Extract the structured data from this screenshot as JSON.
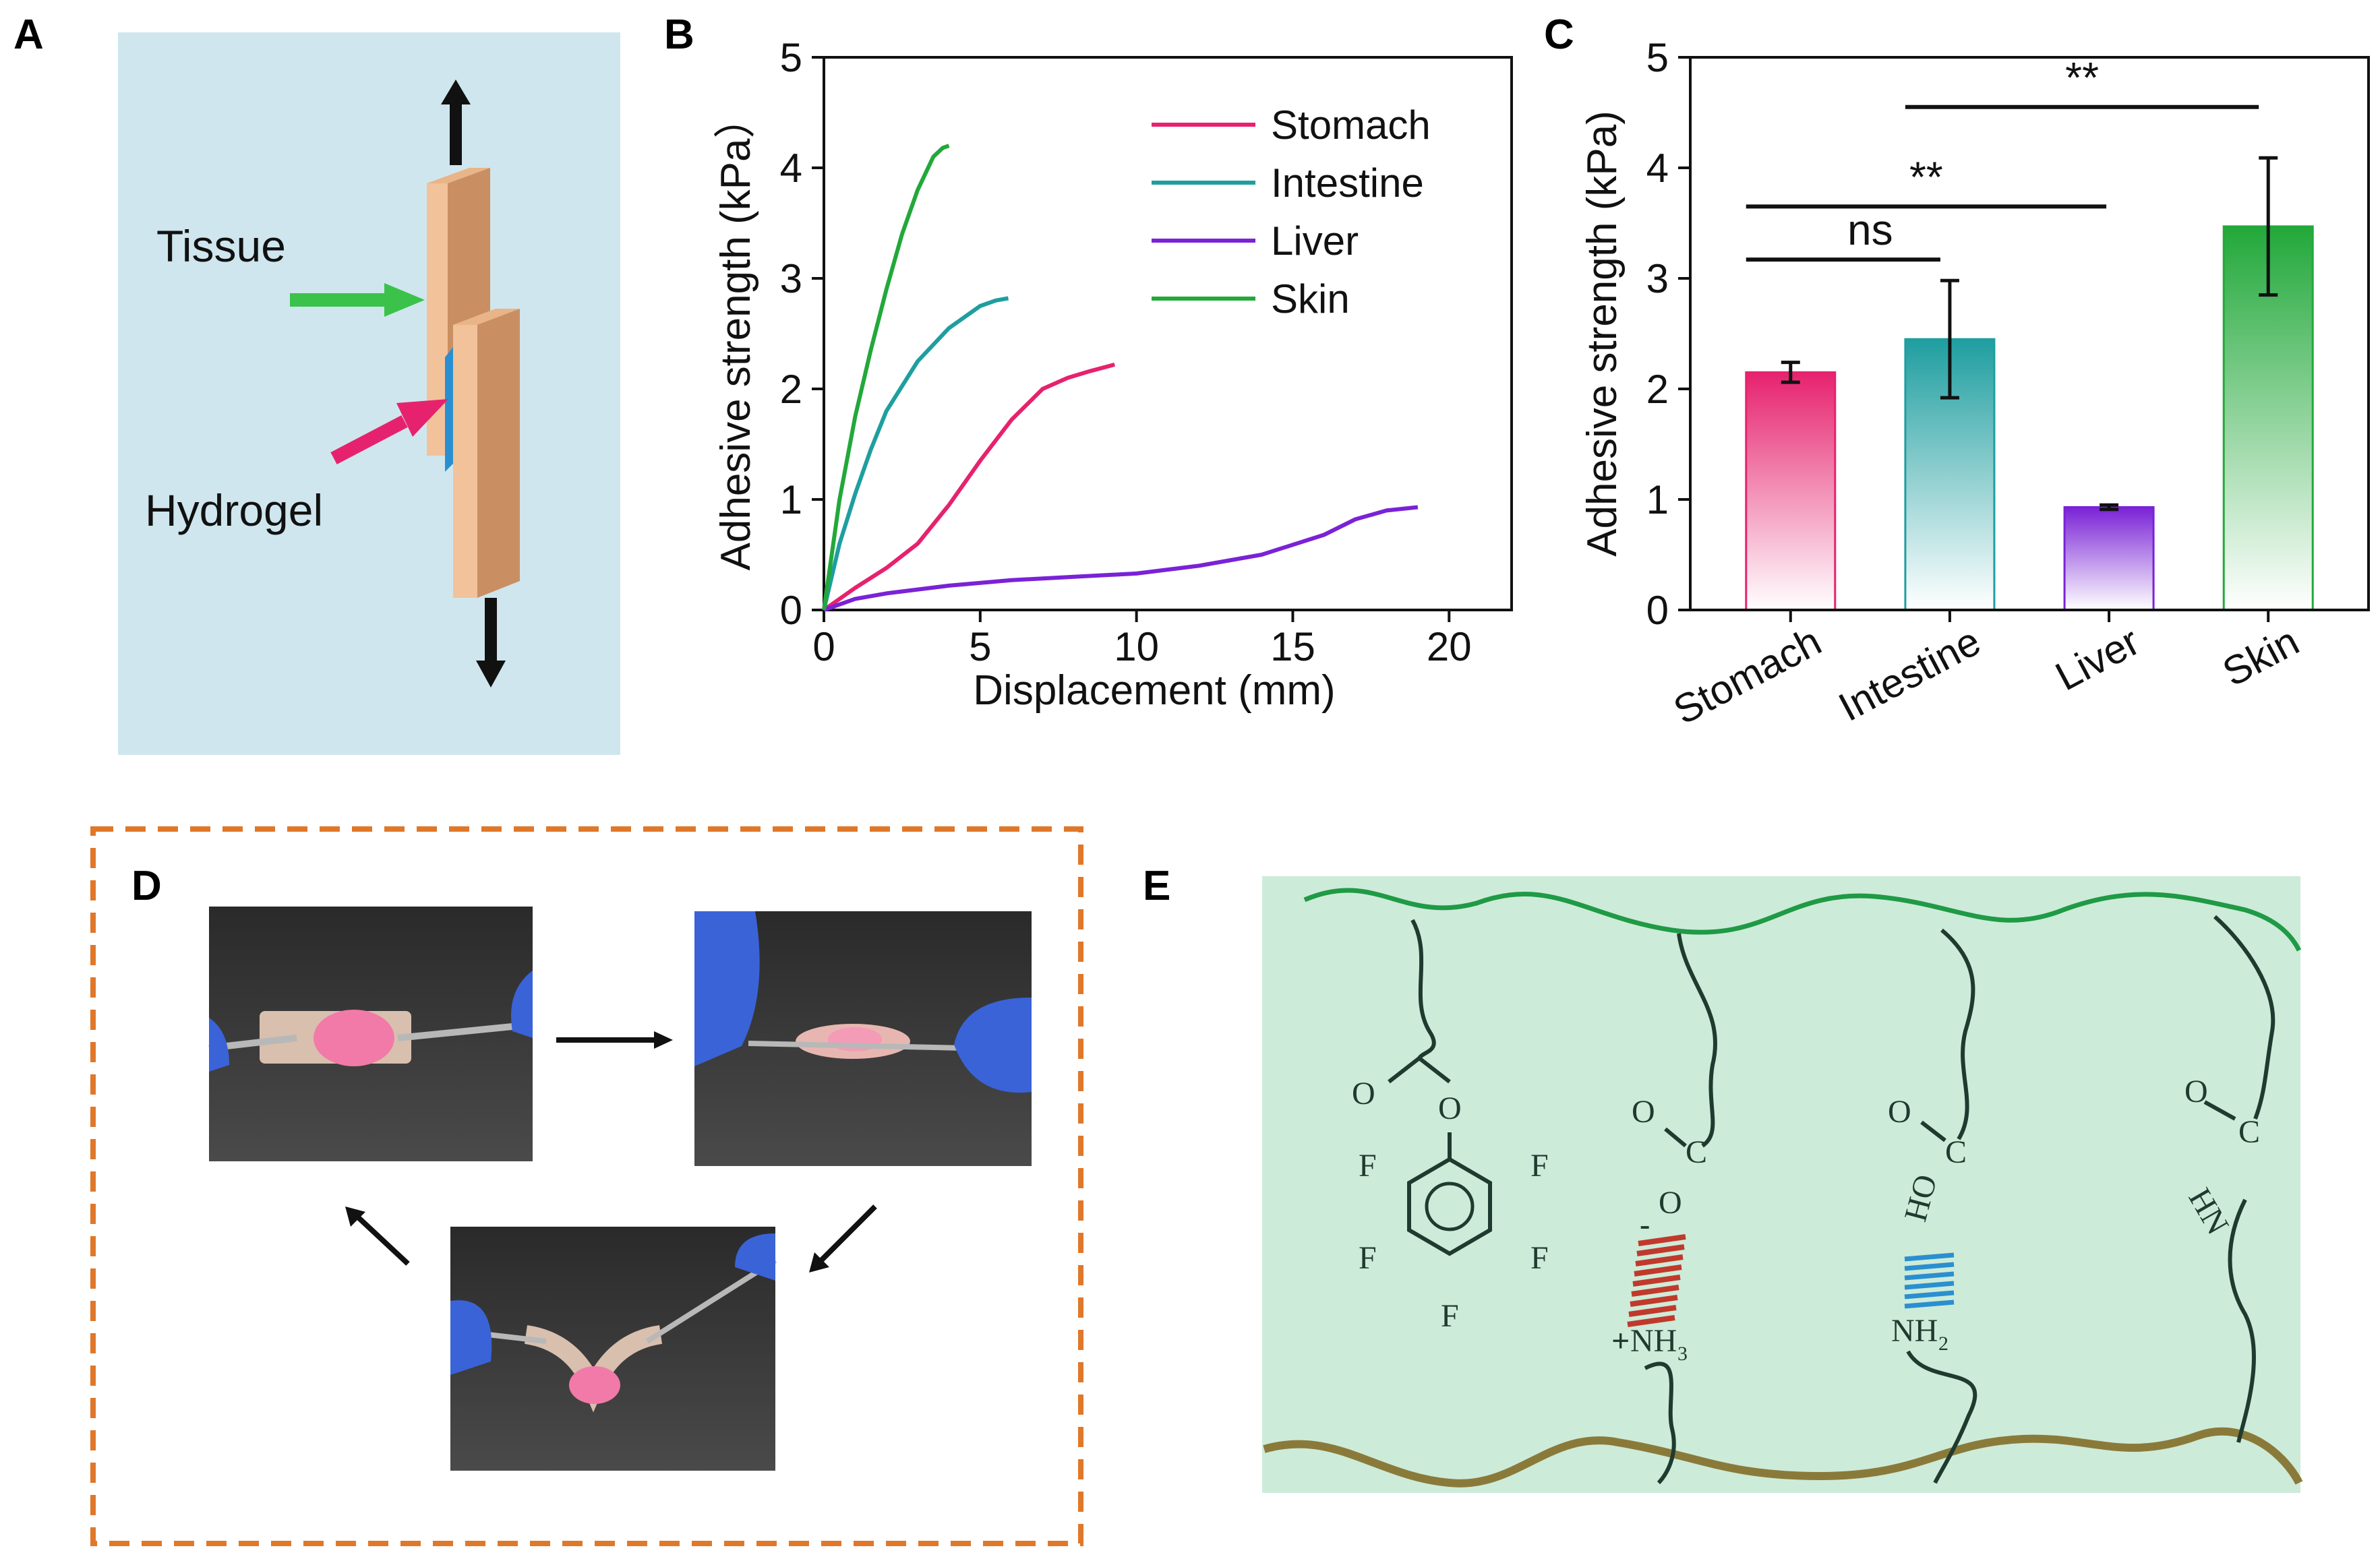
{
  "panels": {
    "a": {
      "letter": "A",
      "tissue_label": "Tissue",
      "hydrogel_label": "Hydrogel",
      "colors": {
        "background": "#cfe6ee",
        "tissue": "#f2c29b",
        "tissue_side": "#c98f62",
        "hydrogel": "#2a8fd0"
      }
    },
    "b": {
      "letter": "B"
    },
    "c": {
      "letter": "C",
      "sig_ns": "ns",
      "sig_1": "**",
      "sig_2": "**"
    },
    "d": {
      "letter": "D",
      "border_color": "#e0782a"
    },
    "e": {
      "letter": "E",
      "chem": {
        "O": "O",
        "F": "F",
        "C": "C",
        "HO": "HO",
        "NH3": "NH",
        "NH3_sub": "3",
        "NH2": "NH",
        "NH2_sub": "2",
        "HN": "HN",
        "plus": "+",
        "minus": "-"
      },
      "colors": {
        "background": "#cdebd9",
        "top_chain": "#1f9a45",
        "bottom_chain": "#8a7a3a",
        "ionic": "#c0392b",
        "hbond": "#2a8fd0"
      }
    }
  },
  "chart_data": [
    {
      "type": "line",
      "panel": "B",
      "title": "",
      "xlabel": "Displacement (mm)",
      "ylabel": "Adhesive strength (kPa）",
      "xlim": [
        0,
        22
      ],
      "ylim": [
        0,
        5
      ],
      "xticks": [
        0,
        5,
        10,
        15,
        20
      ],
      "yticks": [
        0,
        1,
        2,
        3,
        4,
        5
      ],
      "legend_position": "top-right",
      "series": [
        {
          "name": "Stomach",
          "color": "#e6226e",
          "x": [
            0,
            1,
            2,
            3,
            4,
            5,
            6,
            7,
            7.8,
            8.5,
            9.3
          ],
          "y": [
            0,
            0.2,
            0.38,
            0.6,
            0.95,
            1.35,
            1.72,
            2.0,
            2.1,
            2.16,
            2.22
          ]
        },
        {
          "name": "Intestine",
          "color": "#1f9ea0",
          "x": [
            0,
            0.5,
            1,
            1.5,
            2,
            3,
            4,
            5,
            5.5,
            5.9
          ],
          "y": [
            0,
            0.6,
            1.05,
            1.45,
            1.8,
            2.25,
            2.55,
            2.75,
            2.8,
            2.82
          ]
        },
        {
          "name": "Liver",
          "color": "#7a22d6",
          "x": [
            0,
            1,
            2,
            4,
            6,
            8,
            10,
            12,
            14,
            16,
            17,
            18,
            19
          ],
          "y": [
            0,
            0.1,
            0.15,
            0.22,
            0.27,
            0.3,
            0.33,
            0.4,
            0.5,
            0.68,
            0.82,
            0.9,
            0.93
          ]
        },
        {
          "name": "Skin",
          "color": "#22a83a",
          "x": [
            0,
            0.5,
            1,
            1.5,
            2,
            2.5,
            3,
            3.5,
            3.8,
            4.0
          ],
          "y": [
            0,
            1.0,
            1.75,
            2.35,
            2.9,
            3.4,
            3.8,
            4.1,
            4.18,
            4.2
          ]
        }
      ]
    },
    {
      "type": "bar",
      "panel": "C",
      "title": "",
      "xlabel": "",
      "ylabel": "Adhesive strength (kPa)",
      "ylim": [
        0,
        5
      ],
      "yticks": [
        0,
        1,
        2,
        3,
        4,
        5
      ],
      "categories": [
        "Stomach",
        "Intestine",
        "Liver",
        "Skin"
      ],
      "values": [
        2.15,
        2.45,
        0.93,
        3.47
      ],
      "errors": [
        0.09,
        0.53,
        0.02,
        0.62
      ],
      "colors": [
        "#e6226e",
        "#1f9ea0",
        "#7a22d6",
        "#22a83a"
      ],
      "significance": [
        {
          "from": "Stomach",
          "to": "Intestine",
          "label": "ns",
          "level": 3.17
        },
        {
          "from": "Stomach",
          "to": "Liver",
          "label": "**",
          "level": 3.65
        },
        {
          "from": "Intestine",
          "to": "Skin",
          "label": "**",
          "level": 4.55
        }
      ]
    }
  ]
}
